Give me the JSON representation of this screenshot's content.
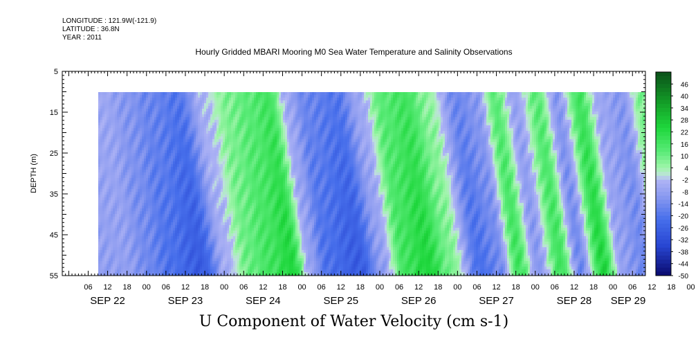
{
  "header": {
    "longitude": "LONGITUDE : 121.9W(-121.9)",
    "latitude": "LATITUDE : 36.8N",
    "year": "YEAR : 2011"
  },
  "chart_data": {
    "type": "heatmap",
    "title": "Hourly Gridded MBARI Mooring M0 Sea Water Temperature and Salinity Observations",
    "xlabel": "U Component of Water Velocity (cm s-1)",
    "ylabel": "DEPTH (m)",
    "ylim": [
      55,
      5
    ],
    "yticks": [
      5,
      15,
      25,
      35,
      45,
      55
    ],
    "x_hour_ticks": [
      "06",
      "12",
      "18",
      "00",
      "06",
      "12",
      "18",
      "00",
      "06",
      "12",
      "18",
      "00",
      "06",
      "12",
      "18",
      "00",
      "06",
      "12",
      "18",
      "00",
      "06",
      "12",
      "18",
      "00",
      "06",
      "12",
      "18",
      "00",
      "06",
      "12",
      "18",
      "00"
    ],
    "x_day_labels": [
      "SEP 22",
      "SEP 23",
      "SEP 24",
      "SEP 25",
      "SEP 26",
      "SEP 27",
      "SEP 28",
      "SEP 29"
    ],
    "x_range_hours_from_sep22_00": [
      -2,
      178
    ],
    "data_start_hours": 9,
    "data_depth_range_m": [
      10,
      55
    ],
    "colorbar": {
      "labels": [
        "46",
        "40",
        "34",
        "28",
        "22",
        "16",
        "10",
        "4",
        "-2",
        "-8",
        "-14",
        "-20",
        "-26",
        "-32",
        "-38",
        "-44",
        "-50"
      ],
      "range": [
        -50,
        52
      ]
    },
    "series": [
      {
        "name": "u_velocity_bands_cm_s",
        "time_hours": [
          10,
          17,
          24,
          33,
          41,
          48,
          55,
          61,
          67,
          72,
          82,
          89,
          96,
          103,
          110,
          119,
          125,
          131,
          137,
          144,
          150,
          157,
          163,
          170,
          176
        ],
        "values": [
          -8,
          -14,
          -20,
          -26,
          -4,
          10,
          16,
          22,
          -8,
          -20,
          -26,
          -8,
          16,
          22,
          8,
          -20,
          -14,
          16,
          -10,
          16,
          -14,
          22,
          -8,
          -14,
          10
        ]
      }
    ]
  }
}
